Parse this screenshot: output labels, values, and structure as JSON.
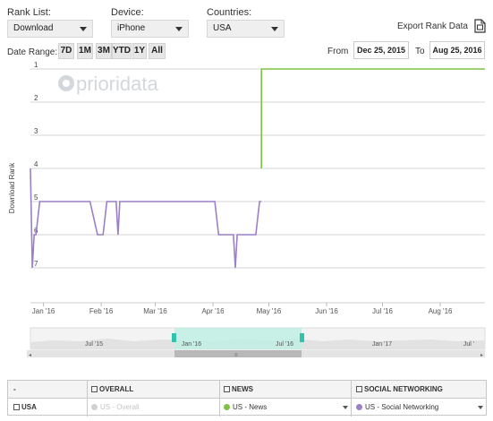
{
  "controls": {
    "rank_list_label": "Rank List:",
    "rank_list_value": "Download",
    "device_label": "Device:",
    "device_value": "iPhone",
    "countries_label": "Countries:",
    "countries_value": "USA",
    "export_label": "Export Rank Data",
    "date_range_label": "Date Range:",
    "date_buttons": [
      "7D",
      "1M",
      "3M",
      "YTD",
      "1Y",
      "All"
    ],
    "from_label": "From",
    "from_value": "Dec 25, 2015",
    "to_label": "To",
    "to_value": "Aug 25, 2016"
  },
  "watermark": "prioridata",
  "navigator": {
    "labels": [
      "Jul '15",
      "Jan '16",
      "Jul '16",
      "Jan '17",
      "Jul '"
    ]
  },
  "table": {
    "headers": [
      "-",
      "OVERALL",
      "NEWS",
      "SOCIAL NETWORKING"
    ],
    "row_label": "USA",
    "overall_value": "US - Overall",
    "news_value": "US - News",
    "social_value": "US - Social Networking",
    "news_color": "#7ec244",
    "social_color": "#9b7fc8",
    "overall_color": "#d0d0d0"
  },
  "chart_data": {
    "type": "line",
    "title": "",
    "ylabel": "Download Rank",
    "xlabel": "",
    "y_inverted": true,
    "ylim": [
      1,
      8
    ],
    "y_ticks": [
      "1",
      "2",
      "3",
      "4",
      "5",
      "6",
      "7"
    ],
    "x_ticks": [
      "Jan '16",
      "Feb '16",
      "Mar '16",
      "Apr '16",
      "May '16",
      "Jun '16",
      "Jul '16",
      "Aug '16"
    ],
    "series": [
      {
        "color": "#7ec244",
        "points": [
          [
            "2016-04-27",
            4
          ],
          [
            "2016-04-27",
            1
          ],
          [
            "2016-08-25",
            1
          ]
        ]
      },
      {
        "color": "#9b7fc8",
        "points": [
          [
            "2015-12-25",
            4
          ],
          [
            "2015-12-26",
            7
          ],
          [
            "2015-12-27",
            6
          ],
          [
            "2015-12-28",
            6
          ],
          [
            "2015-12-30",
            5
          ],
          [
            "2016-01-26",
            5
          ],
          [
            "2016-01-30",
            6
          ],
          [
            "2016-02-02",
            6
          ],
          [
            "2016-02-04",
            5
          ],
          [
            "2016-02-09",
            5
          ],
          [
            "2016-02-10",
            6
          ],
          [
            "2016-02-11",
            5
          ],
          [
            "2016-04-02",
            5
          ],
          [
            "2016-04-04",
            6
          ],
          [
            "2016-04-12",
            6
          ],
          [
            "2016-04-13",
            7
          ],
          [
            "2016-04-14",
            6
          ],
          [
            "2016-04-24",
            6
          ],
          [
            "2016-04-26",
            5
          ],
          [
            "2016-04-27",
            5
          ]
        ]
      }
    ]
  }
}
